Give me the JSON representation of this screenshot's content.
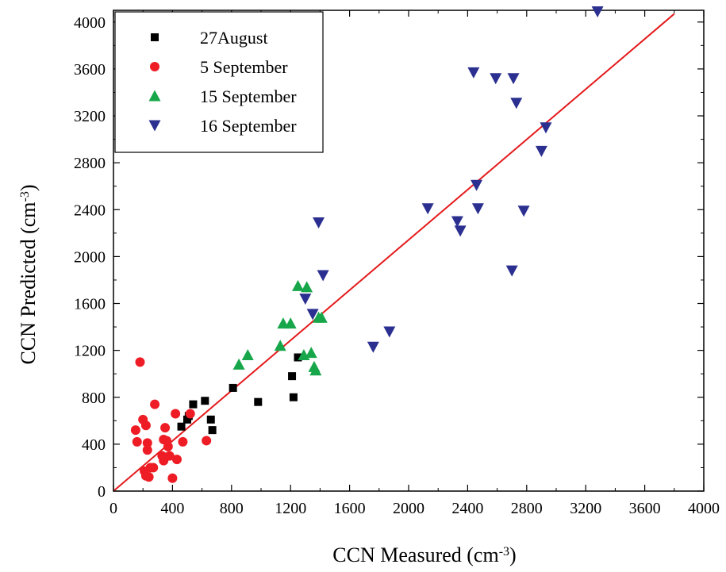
{
  "chart_data": {
    "type": "scatter",
    "title": "",
    "xlabel": "CCN Measured (cm",
    "xlabel_sup": "-3",
    "xlabel_end": ")",
    "ylabel": "CCN Predicted (cm",
    "ylabel_sup": "-3",
    "ylabel_end": ")",
    "xlim": [
      0,
      4000
    ],
    "ylim": [
      0,
      4100
    ],
    "x_ticks": [
      0,
      400,
      800,
      1200,
      1600,
      2000,
      2400,
      2800,
      3200,
      3600,
      4000
    ],
    "y_ticks": [
      0,
      400,
      800,
      1200,
      1600,
      2000,
      2400,
      2800,
      3200,
      3600,
      4000
    ],
    "x_tick_labels": [
      "0",
      "400",
      "800",
      "1200",
      "1600",
      "2000",
      "2400",
      "2800",
      "3200",
      "3600",
      "4000"
    ],
    "y_tick_labels": [
      "0",
      "400",
      "800",
      "1200",
      "1600",
      "2000",
      "2400",
      "2800",
      "3200",
      "3600",
      "4000"
    ],
    "grid": false,
    "legend_position": "top-left",
    "series": [
      {
        "name": "27August",
        "marker": "square",
        "color": "#000000",
        "points": [
          [
            460,
            550
          ],
          [
            500,
            610
          ],
          [
            510,
            640
          ],
          [
            540,
            740
          ],
          [
            620,
            770
          ],
          [
            660,
            610
          ],
          [
            670,
            520
          ],
          [
            810,
            880
          ],
          [
            980,
            760
          ],
          [
            1210,
            980
          ],
          [
            1220,
            800
          ],
          [
            1250,
            1140
          ]
        ]
      },
      {
        "name": "5 September",
        "marker": "circle",
        "color": "#ee1c25",
        "points": [
          [
            180,
            1100
          ],
          [
            150,
            520
          ],
          [
            160,
            420
          ],
          [
            200,
            610
          ],
          [
            210,
            170
          ],
          [
            220,
            130
          ],
          [
            220,
            560
          ],
          [
            230,
            350
          ],
          [
            230,
            410
          ],
          [
            240,
            120
          ],
          [
            250,
            200
          ],
          [
            270,
            200
          ],
          [
            280,
            740
          ],
          [
            330,
            300
          ],
          [
            340,
            260
          ],
          [
            340,
            440
          ],
          [
            350,
            540
          ],
          [
            360,
            430
          ],
          [
            370,
            380
          ],
          [
            380,
            300
          ],
          [
            400,
            110
          ],
          [
            420,
            660
          ],
          [
            430,
            270
          ],
          [
            470,
            420
          ],
          [
            520,
            660
          ],
          [
            630,
            430
          ]
        ]
      },
      {
        "name": "15 September",
        "marker": "triangle-up",
        "color": "#17a74a",
        "points": [
          [
            850,
            1080
          ],
          [
            910,
            1160
          ],
          [
            1130,
            1240
          ],
          [
            1150,
            1430
          ],
          [
            1200,
            1430
          ],
          [
            1250,
            1750
          ],
          [
            1290,
            1160
          ],
          [
            1310,
            1740
          ],
          [
            1340,
            1180
          ],
          [
            1360,
            1060
          ],
          [
            1370,
            1030
          ],
          [
            1390,
            1480
          ],
          [
            1410,
            1480
          ]
        ]
      },
      {
        "name": "16 September",
        "marker": "triangle-down",
        "color": "#2b3090",
        "points": [
          [
            1300,
            1640
          ],
          [
            1350,
            1510
          ],
          [
            1390,
            2290
          ],
          [
            1420,
            1840
          ],
          [
            1760,
            1230
          ],
          [
            1870,
            1360
          ],
          [
            2130,
            2410
          ],
          [
            2330,
            2300
          ],
          [
            2350,
            2220
          ],
          [
            2440,
            3570
          ],
          [
            2460,
            2610
          ],
          [
            2470,
            2410
          ],
          [
            2590,
            3520
          ],
          [
            2700,
            1880
          ],
          [
            2710,
            3520
          ],
          [
            2730,
            3310
          ],
          [
            2780,
            2390
          ],
          [
            2900,
            2900
          ],
          [
            2930,
            3100
          ],
          [
            3280,
            4090
          ]
        ]
      }
    ],
    "fit_line": {
      "color": "#e41a1c",
      "x": [
        0,
        3800
      ],
      "y": [
        0,
        4070
      ]
    }
  }
}
